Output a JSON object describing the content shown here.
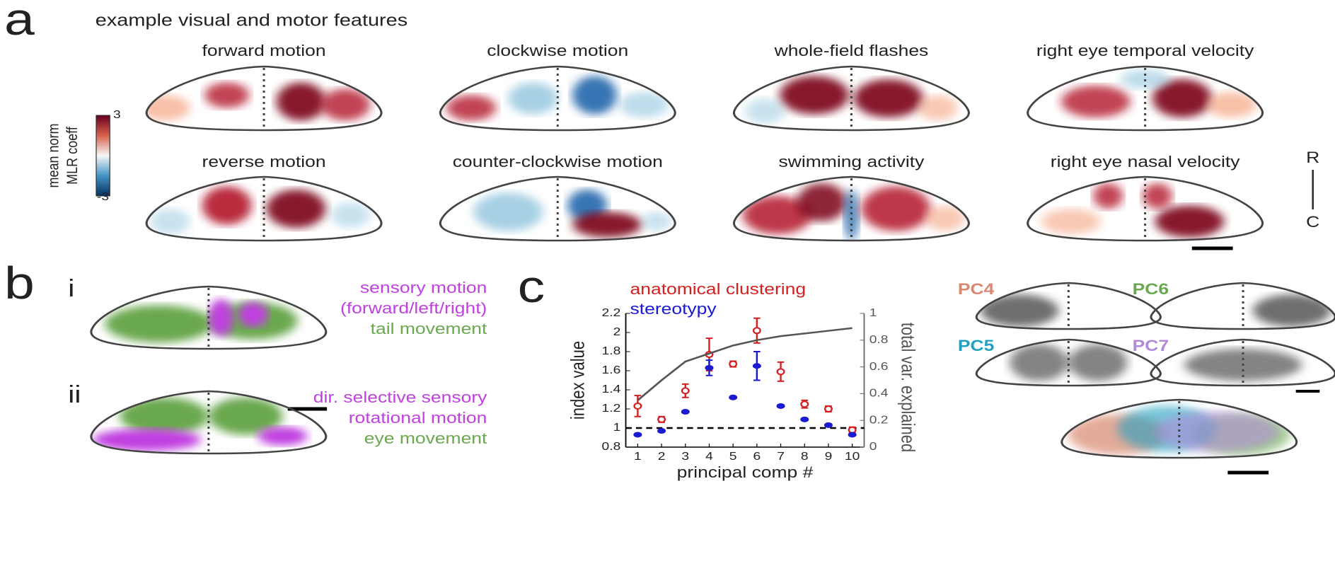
{
  "figure": {
    "panel_a": {
      "letter": "a",
      "title": "example visual and motor features",
      "maps": [
        "forward motion",
        "clockwise motion",
        "whole-field flashes",
        "right eye temporal velocity",
        "reverse motion",
        "counter-clockwise motion",
        "swimming activity",
        "right eye nasal velocity"
      ],
      "colorbar_label": [
        "mean norm",
        "MLR coeff"
      ],
      "colorbar_max": "3",
      "colorbar_min": "-3",
      "axis_rostral": "R",
      "axis_caudal": "C"
    },
    "panel_b": {
      "letter": "b",
      "i": {
        "label": "i",
        "lines": [
          "sensory motion",
          "(forward/left/right)",
          "tail movement"
        ]
      },
      "ii": {
        "label": "ii",
        "lines": [
          "dir. selective sensory",
          "rotational motion",
          "eye movement"
        ]
      }
    },
    "panel_c": {
      "letter": "c",
      "pcs": [
        "PC4",
        "PC6",
        "PC5",
        "PC7"
      ]
    }
  },
  "chart_data": {
    "type": "line",
    "x": [
      1,
      2,
      3,
      4,
      5,
      6,
      7,
      8,
      9,
      10
    ],
    "series": [
      {
        "name": "anatomical clustering",
        "color": "#d42020",
        "values": [
          1.23,
          1.09,
          1.39,
          1.77,
          1.67,
          2.02,
          1.59,
          1.25,
          1.2,
          0.98
        ],
        "errors": [
          0.11,
          0.03,
          0.07,
          0.17,
          0.03,
          0.13,
          0.1,
          0.04,
          0.03,
          0.03
        ]
      },
      {
        "name": "stereotypy",
        "color": "#1a1ad0",
        "values": [
          0.93,
          0.97,
          1.17,
          1.63,
          1.32,
          1.65,
          1.23,
          1.09,
          1.03,
          0.93
        ],
        "errors": [
          0.01,
          0.01,
          0.01,
          0.08,
          0.01,
          0.15,
          0.01,
          0.01,
          0.01,
          0.01
        ]
      },
      {
        "name": "total var. explained",
        "color": "#555555",
        "axis": "y2",
        "values": [
          0.35,
          0.5,
          0.64,
          0.7,
          0.76,
          0.8,
          0.83,
          0.85,
          0.87,
          0.89
        ]
      }
    ],
    "xlabel": "principal comp #",
    "ylabel": "index value",
    "y2label": "total var. explained",
    "xlim": [
      0.5,
      10.5
    ],
    "xticks": [
      1,
      2,
      3,
      4,
      5,
      6,
      7,
      8,
      9,
      10
    ],
    "ylim": [
      0.8,
      2.2
    ],
    "yticks": [
      0.8,
      1,
      1.2,
      1.4,
      1.6,
      1.8,
      2,
      2.2
    ],
    "y2lim": [
      0,
      1
    ],
    "y2ticks": [
      0,
      0.2,
      0.4,
      0.6,
      0.8,
      1
    ],
    "reference_line": 1
  }
}
